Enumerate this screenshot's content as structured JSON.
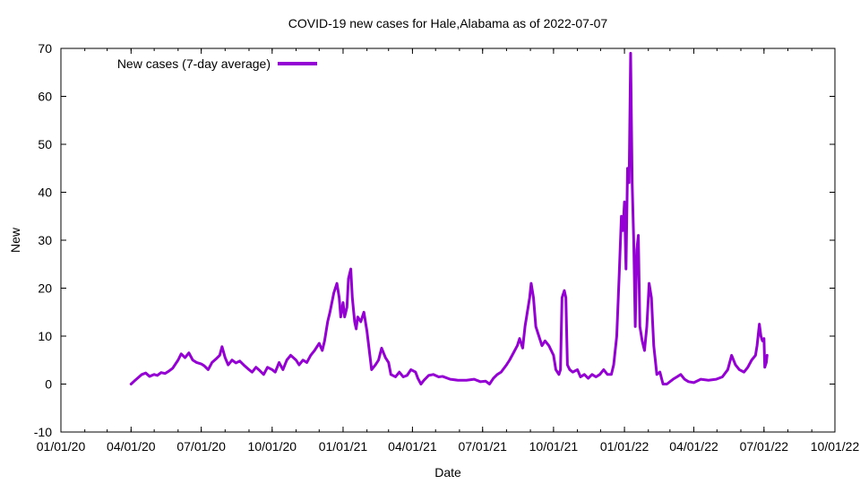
{
  "chart_data": {
    "type": "line",
    "title": "COVID-19 new cases for Hale,Alabama as of 2022-07-07",
    "xlabel": "Date",
    "ylabel": "New",
    "x_ticks": [
      "01/01/20",
      "04/01/20",
      "07/01/20",
      "10/01/20",
      "01/01/21",
      "04/01/21",
      "07/01/21",
      "10/01/21",
      "01/01/22",
      "04/01/22",
      "07/01/22",
      "10/01/22"
    ],
    "y_ticks": [
      "-10",
      "0",
      "10",
      "20",
      "30",
      "40",
      "50",
      "60",
      "70"
    ],
    "xlim": [
      "2020-01-01",
      "2022-10-01"
    ],
    "ylim": [
      -10,
      70
    ],
    "grid": false,
    "legend_position": "top-left",
    "line_color": "#9400D3",
    "series": [
      {
        "name": "New cases (7-day average)",
        "points": [
          [
            "2020-04-01",
            0
          ],
          [
            "2020-04-05",
            0.6
          ],
          [
            "2020-04-10",
            1.3
          ],
          [
            "2020-04-15",
            2
          ],
          [
            "2020-04-20",
            2.3
          ],
          [
            "2020-04-25",
            1.6
          ],
          [
            "2020-05-01",
            2
          ],
          [
            "2020-05-05",
            1.8
          ],
          [
            "2020-05-10",
            2.4
          ],
          [
            "2020-05-15",
            2.2
          ],
          [
            "2020-05-20",
            2.7
          ],
          [
            "2020-05-25",
            3.3
          ],
          [
            "2020-06-01",
            5
          ],
          [
            "2020-06-05",
            6.3
          ],
          [
            "2020-06-10",
            5.5
          ],
          [
            "2020-06-15",
            6.5
          ],
          [
            "2020-06-20",
            5
          ],
          [
            "2020-06-25",
            4.5
          ],
          [
            "2020-07-01",
            4.2
          ],
          [
            "2020-07-05",
            3.8
          ],
          [
            "2020-07-10",
            3
          ],
          [
            "2020-07-15",
            4.5
          ],
          [
            "2020-07-20",
            5.2
          ],
          [
            "2020-07-25",
            6
          ],
          [
            "2020-07-28",
            7.8
          ],
          [
            "2020-08-01",
            5.5
          ],
          [
            "2020-08-05",
            4
          ],
          [
            "2020-08-10",
            5
          ],
          [
            "2020-08-15",
            4.4
          ],
          [
            "2020-08-20",
            4.8
          ],
          [
            "2020-08-25",
            4
          ],
          [
            "2020-09-01",
            3
          ],
          [
            "2020-09-05",
            2.5
          ],
          [
            "2020-09-10",
            3.5
          ],
          [
            "2020-09-15",
            2.8
          ],
          [
            "2020-09-20",
            2
          ],
          [
            "2020-09-25",
            3.5
          ],
          [
            "2020-10-01",
            3
          ],
          [
            "2020-10-05",
            2.5
          ],
          [
            "2020-10-10",
            4.5
          ],
          [
            "2020-10-15",
            3
          ],
          [
            "2020-10-20",
            5
          ],
          [
            "2020-10-25",
            6
          ],
          [
            "2020-11-01",
            5
          ],
          [
            "2020-11-05",
            4
          ],
          [
            "2020-11-10",
            5
          ],
          [
            "2020-11-15",
            4.5
          ],
          [
            "2020-11-20",
            6
          ],
          [
            "2020-11-25",
            7
          ],
          [
            "2020-12-01",
            8.5
          ],
          [
            "2020-12-05",
            7
          ],
          [
            "2020-12-08",
            9
          ],
          [
            "2020-12-12",
            13
          ],
          [
            "2020-12-15",
            15
          ],
          [
            "2020-12-20",
            19
          ],
          [
            "2020-12-24",
            21
          ],
          [
            "2020-12-27",
            18
          ],
          [
            "2020-12-29",
            14
          ],
          [
            "2021-01-01",
            17
          ],
          [
            "2021-01-03",
            14
          ],
          [
            "2021-01-06",
            16
          ],
          [
            "2021-01-08",
            22
          ],
          [
            "2021-01-11",
            24
          ],
          [
            "2021-01-13",
            18
          ],
          [
            "2021-01-16",
            13
          ],
          [
            "2021-01-18",
            11.5
          ],
          [
            "2021-01-20",
            14
          ],
          [
            "2021-01-24",
            13
          ],
          [
            "2021-01-28",
            15
          ],
          [
            "2021-02-01",
            11
          ],
          [
            "2021-02-04",
            7
          ],
          [
            "2021-02-07",
            3
          ],
          [
            "2021-02-12",
            4
          ],
          [
            "2021-02-16",
            5
          ],
          [
            "2021-02-20",
            7.5
          ],
          [
            "2021-02-25",
            5.5
          ],
          [
            "2021-03-01",
            4.5
          ],
          [
            "2021-03-04",
            2
          ],
          [
            "2021-03-10",
            1.5
          ],
          [
            "2021-03-15",
            2.5
          ],
          [
            "2021-03-20",
            1.5
          ],
          [
            "2021-03-25",
            1.8
          ],
          [
            "2021-03-30",
            3
          ],
          [
            "2021-04-05",
            2.5
          ],
          [
            "2021-04-08",
            1.2
          ],
          [
            "2021-04-12",
            0
          ],
          [
            "2021-04-16",
            0.8
          ],
          [
            "2021-04-22",
            1.8
          ],
          [
            "2021-04-28",
            2
          ],
          [
            "2021-05-05",
            1.5
          ],
          [
            "2021-05-10",
            1.6
          ],
          [
            "2021-05-20",
            1
          ],
          [
            "2021-05-30",
            0.8
          ],
          [
            "2021-06-10",
            0.8
          ],
          [
            "2021-06-20",
            1
          ],
          [
            "2021-06-28",
            0.5
          ],
          [
            "2021-07-05",
            0.6
          ],
          [
            "2021-07-10",
            0
          ],
          [
            "2021-07-15",
            1.2
          ],
          [
            "2021-07-20",
            2
          ],
          [
            "2021-07-25",
            2.5
          ],
          [
            "2021-08-01",
            4
          ],
          [
            "2021-08-05",
            5
          ],
          [
            "2021-08-10",
            6.5
          ],
          [
            "2021-08-15",
            8
          ],
          [
            "2021-08-18",
            9.5
          ],
          [
            "2021-08-22",
            7.5
          ],
          [
            "2021-08-25",
            12
          ],
          [
            "2021-08-28",
            15
          ],
          [
            "2021-08-31",
            18
          ],
          [
            "2021-09-02",
            21
          ],
          [
            "2021-09-05",
            18
          ],
          [
            "2021-09-08",
            12
          ],
          [
            "2021-09-12",
            10
          ],
          [
            "2021-09-16",
            8
          ],
          [
            "2021-09-20",
            9
          ],
          [
            "2021-09-25",
            8
          ],
          [
            "2021-10-01",
            6
          ],
          [
            "2021-10-04",
            3
          ],
          [
            "2021-10-08",
            2
          ],
          [
            "2021-10-10",
            3
          ],
          [
            "2021-10-12",
            18
          ],
          [
            "2021-10-15",
            19.5
          ],
          [
            "2021-10-17",
            18
          ],
          [
            "2021-10-19",
            4
          ],
          [
            "2021-10-22",
            3
          ],
          [
            "2021-10-26",
            2.5
          ],
          [
            "2021-11-01",
            3
          ],
          [
            "2021-11-05",
            1.5
          ],
          [
            "2021-11-10",
            2
          ],
          [
            "2021-11-15",
            1.2
          ],
          [
            "2021-11-20",
            2
          ],
          [
            "2021-11-25",
            1.5
          ],
          [
            "2021-11-30",
            2
          ],
          [
            "2021-12-05",
            3
          ],
          [
            "2021-12-10",
            2
          ],
          [
            "2021-12-15",
            2
          ],
          [
            "2021-12-18",
            4
          ],
          [
            "2021-12-22",
            10
          ],
          [
            "2021-12-25",
            22
          ],
          [
            "2021-12-28",
            35
          ],
          [
            "2021-12-30",
            32
          ],
          [
            "2022-01-01",
            38
          ],
          [
            "2022-01-03",
            24
          ],
          [
            "2022-01-05",
            45
          ],
          [
            "2022-01-07",
            42
          ],
          [
            "2022-01-09",
            69
          ],
          [
            "2022-01-11",
            42
          ],
          [
            "2022-01-13",
            30
          ],
          [
            "2022-01-15",
            12
          ],
          [
            "2022-01-17",
            28
          ],
          [
            "2022-01-19",
            31
          ],
          [
            "2022-01-21",
            12
          ],
          [
            "2022-01-24",
            9
          ],
          [
            "2022-01-27",
            7
          ],
          [
            "2022-01-30",
            12
          ],
          [
            "2022-02-02",
            21
          ],
          [
            "2022-02-05",
            18
          ],
          [
            "2022-02-08",
            8
          ],
          [
            "2022-02-12",
            2
          ],
          [
            "2022-02-16",
            2.5
          ],
          [
            "2022-02-20",
            0
          ],
          [
            "2022-02-25",
            0
          ],
          [
            "2022-03-05",
            1
          ],
          [
            "2022-03-10",
            1.5
          ],
          [
            "2022-03-15",
            2
          ],
          [
            "2022-03-20",
            1
          ],
          [
            "2022-03-25",
            0.5
          ],
          [
            "2022-04-01",
            0.3
          ],
          [
            "2022-04-10",
            1
          ],
          [
            "2022-04-20",
            0.8
          ],
          [
            "2022-04-30",
            1
          ],
          [
            "2022-05-08",
            1.5
          ],
          [
            "2022-05-15",
            3
          ],
          [
            "2022-05-20",
            6
          ],
          [
            "2022-05-25",
            4
          ],
          [
            "2022-05-30",
            3
          ],
          [
            "2022-06-05",
            2.5
          ],
          [
            "2022-06-10",
            3.5
          ],
          [
            "2022-06-15",
            5
          ],
          [
            "2022-06-20",
            6
          ],
          [
            "2022-06-22",
            8
          ],
          [
            "2022-06-25",
            12.5
          ],
          [
            "2022-06-27",
            10
          ],
          [
            "2022-06-29",
            9
          ],
          [
            "2022-07-01",
            9.5
          ],
          [
            "2022-07-02",
            3.5
          ],
          [
            "2022-07-04",
            4.5
          ],
          [
            "2022-07-05",
            6
          ]
        ]
      }
    ]
  }
}
